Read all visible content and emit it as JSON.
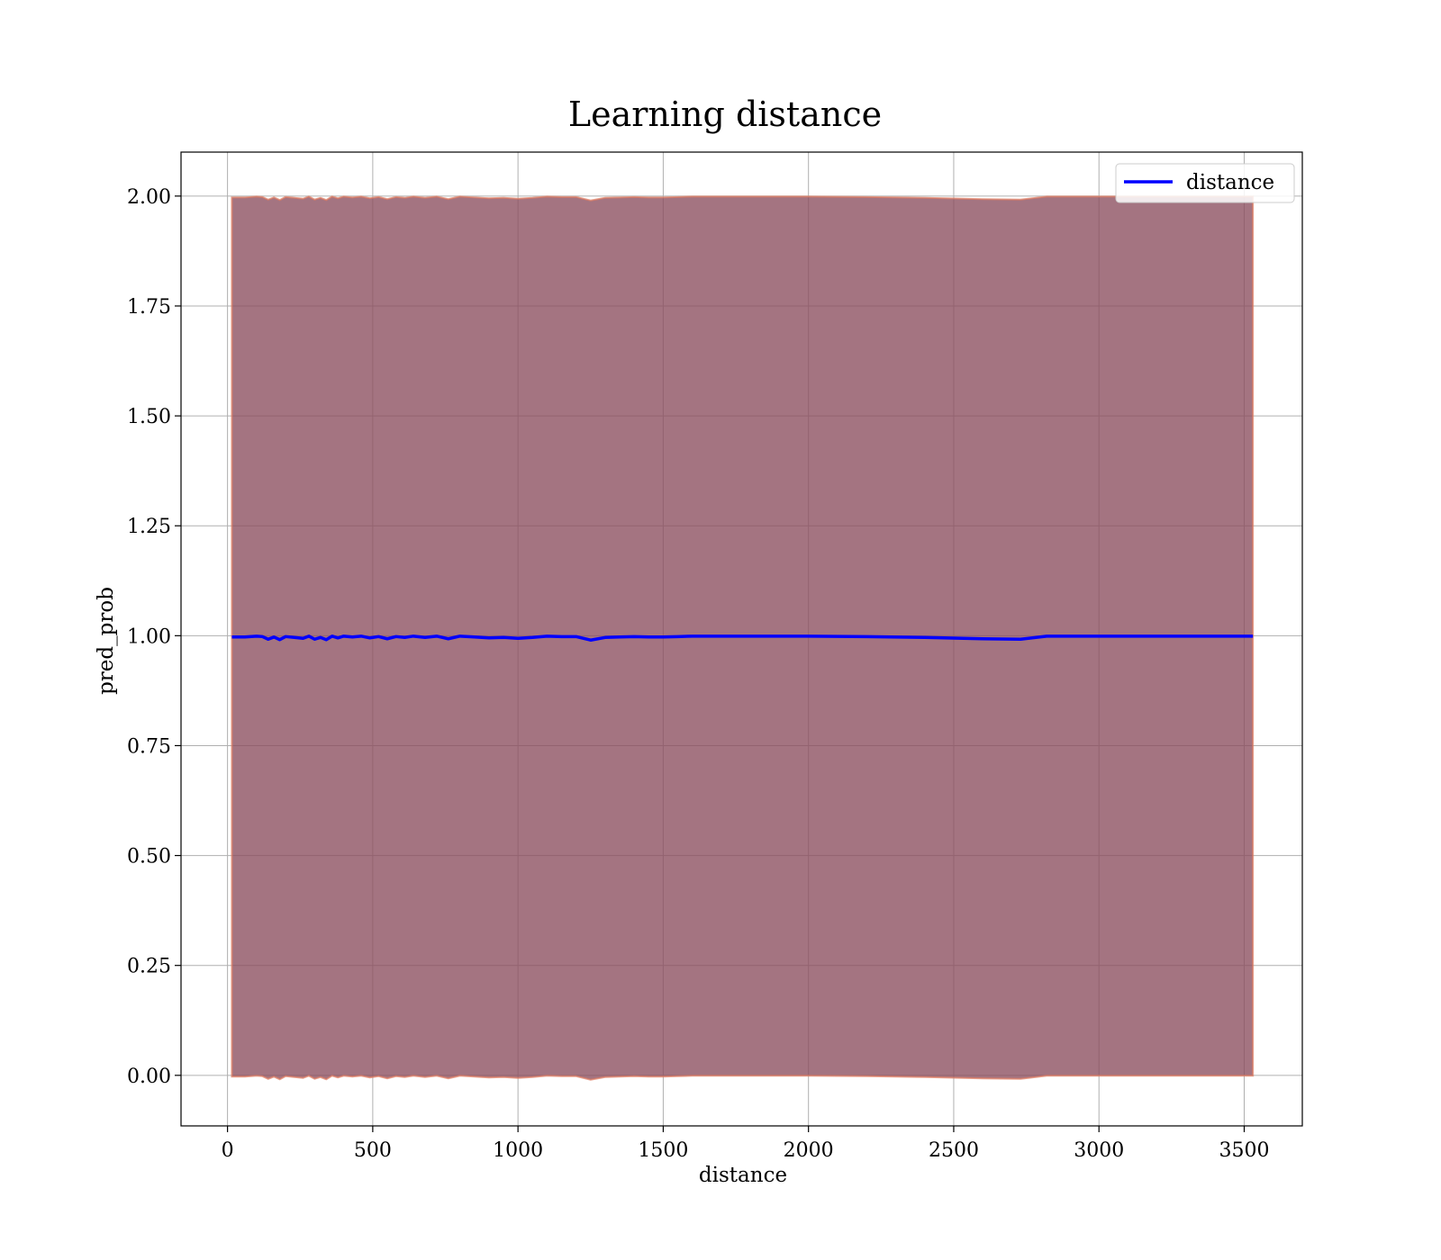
{
  "chart_data": {
    "type": "line",
    "title": "Learning distance",
    "xlabel": "distance",
    "ylabel": "pred_prob",
    "xlim": [
      -160,
      3700
    ],
    "ylim": [
      -0.115,
      2.1
    ],
    "xticks": [
      0,
      500,
      1000,
      1500,
      2000,
      2500,
      3000,
      3500
    ],
    "xtick_labels": [
      "0",
      "500",
      "1000",
      "1500",
      "2000",
      "2500",
      "3000",
      "3500"
    ],
    "yticks": [
      0.0,
      0.25,
      0.5,
      0.75,
      1.0,
      1.25,
      1.5,
      1.75,
      2.0
    ],
    "ytick_labels": [
      "0.00",
      "0.25",
      "0.50",
      "0.75",
      "1.00",
      "1.25",
      "1.50",
      "1.75",
      "2.00"
    ],
    "grid": true,
    "legend_position": "top-right",
    "series": [
      {
        "name": "distance",
        "color": "#0000ff",
        "x": [
          15,
          60,
          100,
          120,
          140,
          160,
          180,
          200,
          230,
          260,
          280,
          300,
          320,
          340,
          360,
          380,
          400,
          430,
          460,
          490,
          520,
          550,
          580,
          610,
          640,
          680,
          720,
          760,
          800,
          850,
          900,
          950,
          1000,
          1050,
          1100,
          1150,
          1200,
          1250,
          1300,
          1350,
          1400,
          1450,
          1500,
          1550,
          1600,
          1700,
          1800,
          1900,
          2000,
          2200,
          2400,
          2600,
          2730,
          2820,
          3000,
          3200,
          3400,
          3530
        ],
        "y": [
          0.997,
          0.997,
          0.999,
          0.998,
          0.992,
          0.997,
          0.991,
          0.998,
          0.996,
          0.994,
          0.999,
          0.992,
          0.996,
          0.991,
          0.999,
          0.995,
          0.999,
          0.997,
          0.999,
          0.995,
          0.998,
          0.993,
          0.998,
          0.996,
          0.999,
          0.996,
          0.999,
          0.993,
          0.999,
          0.997,
          0.995,
          0.996,
          0.994,
          0.996,
          0.999,
          0.998,
          0.998,
          0.99,
          0.996,
          0.997,
          0.998,
          0.997,
          0.997,
          0.998,
          0.999,
          0.999,
          0.999,
          0.999,
          0.999,
          0.998,
          0.996,
          0.993,
          0.992,
          0.999,
          0.999,
          0.999,
          0.999,
          0.999
        ]
      }
    ],
    "band_color": "#8b4d5d",
    "band_edge_color": "#e07a5f",
    "spine_color": "#000000",
    "grid_color": "#b0b0b0"
  }
}
